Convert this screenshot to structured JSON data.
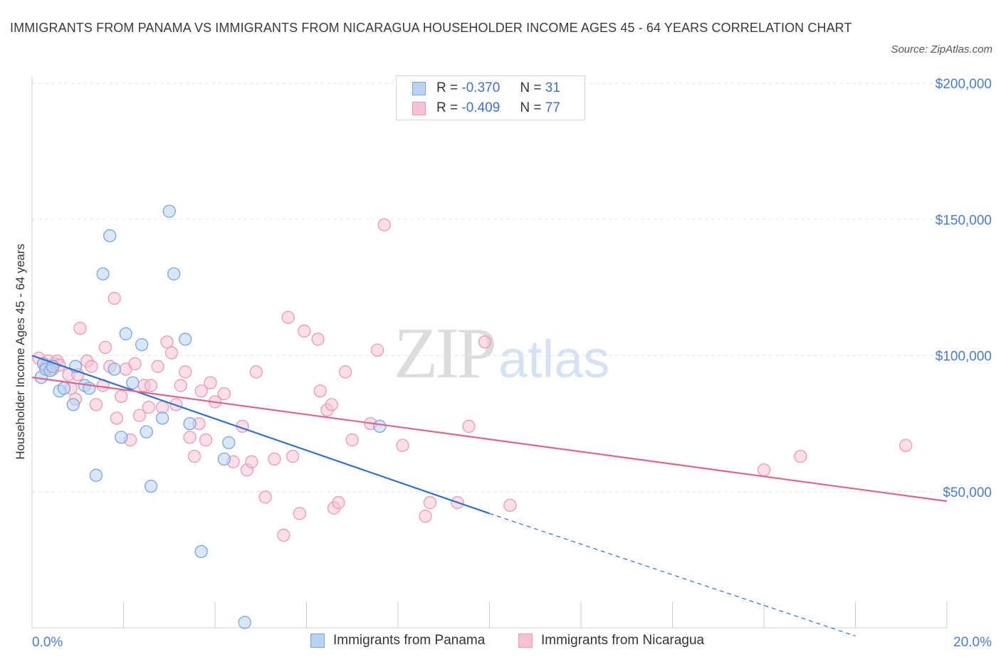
{
  "header": {
    "title": "IMMIGRANTS FROM PANAMA VS IMMIGRANTS FROM NICARAGUA HOUSEHOLDER INCOME AGES 45 - 64 YEARS CORRELATION CHART",
    "source": "Source: ZipAtlas.com"
  },
  "watermark": {
    "zip": "ZIP",
    "atlas": "atlas"
  },
  "legend": {
    "panama": {
      "r_label": "R =",
      "r_value": "-0.370",
      "n_label": "N =",
      "n_value": "31"
    },
    "nicaragua": {
      "r_label": "R =",
      "r_value": "-0.409",
      "n_label": "N =",
      "n_value": "77"
    }
  },
  "bottom_legend": {
    "panama": "Immigrants from Panama",
    "nicaragua": "Immigrants from Nicaragua"
  },
  "colors": {
    "panama_fill": "#b9d2f3",
    "panama_stroke": "#7aa6e0",
    "panama_line": "#2f6fd0",
    "nicaragua_fill": "#f7c3d3",
    "nicaragua_stroke": "#e99ab5",
    "nicaragua_line": "#e0648f",
    "tick_text": "#4a7cc9",
    "grid": "#e3e3e3"
  },
  "chart_data": {
    "type": "scatter",
    "title": "IMMIGRANTS FROM PANAMA VS IMMIGRANTS FROM NICARAGUA HOUSEHOLDER INCOME AGES 45 - 64 YEARS CORRELATION CHART",
    "xlabel": "",
    "ylabel": "Householder Income Ages 45 - 64 years",
    "xlim": [
      0,
      20
    ],
    "ylim": [
      0,
      200000
    ],
    "x_tick_labels": [
      "0.0%",
      "20.0%"
    ],
    "y_ticks": [
      50000,
      100000,
      150000,
      200000
    ],
    "y_tick_labels": [
      "$50,000",
      "$100,000",
      "$150,000",
      "$200,000"
    ],
    "grid": true,
    "legend_position": "top-center",
    "series": [
      {
        "name": "Immigrants from Panama",
        "r": -0.37,
        "n": 31,
        "points": [
          [
            0.2,
            92000
          ],
          [
            0.25,
            97000
          ],
          [
            0.3,
            95000
          ],
          [
            0.4,
            94500
          ],
          [
            0.45,
            96000
          ],
          [
            0.6,
            87000
          ],
          [
            0.7,
            88000
          ],
          [
            0.9,
            82000
          ],
          [
            0.95,
            96000
          ],
          [
            1.15,
            89000
          ],
          [
            1.25,
            88000
          ],
          [
            1.4,
            56000
          ],
          [
            1.55,
            130000
          ],
          [
            1.7,
            144000
          ],
          [
            1.8,
            95000
          ],
          [
            1.95,
            70000
          ],
          [
            2.05,
            108000
          ],
          [
            2.2,
            90000
          ],
          [
            2.4,
            104000
          ],
          [
            2.5,
            72000
          ],
          [
            2.6,
            52000
          ],
          [
            2.85,
            77000
          ],
          [
            3.0,
            153000
          ],
          [
            3.1,
            130000
          ],
          [
            3.35,
            106000
          ],
          [
            3.45,
            75000
          ],
          [
            3.7,
            28000
          ],
          [
            4.2,
            62000
          ],
          [
            4.3,
            68000
          ],
          [
            4.65,
            2000
          ],
          [
            7.6,
            74000
          ]
        ],
        "trend": {
          "x0": 0,
          "y0": 100000,
          "x1": 10,
          "y1": 42000,
          "dashed_to_x": 18,
          "dashed_to_y": -3000
        }
      },
      {
        "name": "Immigrants from Nicaragua",
        "r": -0.409,
        "n": 77,
        "points": [
          [
            0.15,
            99000
          ],
          [
            0.25,
            97000
          ],
          [
            0.3,
            96000
          ],
          [
            0.35,
            98000
          ],
          [
            0.45,
            95000
          ],
          [
            0.5,
            97000
          ],
          [
            0.55,
            98000
          ],
          [
            0.6,
            96500
          ],
          [
            0.8,
            93000
          ],
          [
            0.85,
            88000
          ],
          [
            0.95,
            84000
          ],
          [
            1.0,
            93000
          ],
          [
            1.05,
            110000
          ],
          [
            1.2,
            98000
          ],
          [
            1.3,
            96000
          ],
          [
            1.4,
            82000
          ],
          [
            1.55,
            89000
          ],
          [
            1.6,
            103000
          ],
          [
            1.7,
            96000
          ],
          [
            1.8,
            121000
          ],
          [
            1.85,
            77000
          ],
          [
            1.95,
            85000
          ],
          [
            2.05,
            95000
          ],
          [
            2.15,
            69000
          ],
          [
            2.25,
            97000
          ],
          [
            2.35,
            78000
          ],
          [
            2.45,
            89000
          ],
          [
            2.55,
            81000
          ],
          [
            2.6,
            89000
          ],
          [
            2.75,
            96000
          ],
          [
            2.85,
            81000
          ],
          [
            2.95,
            105000
          ],
          [
            3.05,
            101000
          ],
          [
            3.15,
            82000
          ],
          [
            3.25,
            89000
          ],
          [
            3.35,
            94000
          ],
          [
            3.45,
            70000
          ],
          [
            3.55,
            63000
          ],
          [
            3.65,
            75000
          ],
          [
            3.7,
            87000
          ],
          [
            3.8,
            69000
          ],
          [
            3.9,
            90000
          ],
          [
            4.0,
            83000
          ],
          [
            4.2,
            86000
          ],
          [
            4.4,
            61000
          ],
          [
            4.6,
            74000
          ],
          [
            4.7,
            58000
          ],
          [
            4.8,
            61000
          ],
          [
            4.9,
            94000
          ],
          [
            5.1,
            48000
          ],
          [
            5.3,
            62000
          ],
          [
            5.5,
            34000
          ],
          [
            5.6,
            114000
          ],
          [
            5.7,
            63000
          ],
          [
            5.85,
            42000
          ],
          [
            5.95,
            109000
          ],
          [
            6.25,
            106000
          ],
          [
            6.3,
            87000
          ],
          [
            6.45,
            80000
          ],
          [
            6.55,
            82000
          ],
          [
            6.6,
            44000
          ],
          [
            6.7,
            46000
          ],
          [
            6.85,
            94000
          ],
          [
            7.0,
            69000
          ],
          [
            7.4,
            75000
          ],
          [
            7.55,
            102000
          ],
          [
            7.7,
            148000
          ],
          [
            8.1,
            67000
          ],
          [
            8.6,
            41000
          ],
          [
            8.7,
            46000
          ],
          [
            9.3,
            46000
          ],
          [
            9.55,
            74000
          ],
          [
            9.9,
            105000
          ],
          [
            10.45,
            45000
          ],
          [
            16.0,
            58000
          ],
          [
            16.8,
            63000
          ],
          [
            19.1,
            67000
          ]
        ],
        "trend": {
          "x0": 0,
          "y0": 92000,
          "x1": 20,
          "y1": 46500
        }
      }
    ]
  }
}
